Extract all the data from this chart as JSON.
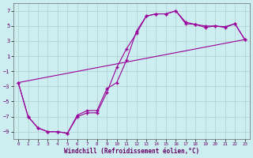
{
  "xlabel": "Windchill (Refroidissement éolien,°C)",
  "bg_color": "#cceef0",
  "grid_color": "#b0cdd0",
  "line_color": "#990099",
  "xlim": [
    -0.5,
    23.5
  ],
  "ylim": [
    -10,
    8
  ],
  "yticks": [
    7,
    5,
    3,
    1,
    -1,
    -3,
    -5,
    -7,
    -9
  ],
  "xticks": [
    0,
    1,
    2,
    3,
    4,
    5,
    6,
    7,
    8,
    9,
    10,
    11,
    12,
    13,
    14,
    15,
    16,
    17,
    18,
    19,
    20,
    21,
    22,
    23
  ],
  "line1_x": [
    0,
    1,
    2,
    3,
    4,
    5,
    6,
    7,
    8,
    9,
    10,
    11,
    12,
    13,
    14,
    15,
    16,
    17,
    18,
    19,
    20,
    21,
    22,
    23
  ],
  "line1_y": [
    -2.5,
    -7.0,
    -8.5,
    -9.0,
    -9.0,
    -9.2,
    -6.8,
    -6.2,
    -6.2,
    -3.3,
    -2.5,
    0.5,
    4.3,
    6.3,
    6.6,
    6.6,
    7.0,
    5.3,
    5.2,
    5.0,
    5.0,
    4.9,
    5.3,
    3.2
  ],
  "line2_x": [
    0,
    1,
    2,
    3,
    4,
    5,
    6,
    7,
    8,
    9,
    10,
    11,
    12,
    13,
    14,
    15,
    16,
    17,
    18,
    19,
    20,
    21,
    22,
    23
  ],
  "line2_y": [
    -2.5,
    -7.0,
    -8.5,
    -9.0,
    -9.0,
    -9.2,
    -7.0,
    -6.5,
    -6.5,
    -3.8,
    -0.5,
    2.0,
    4.0,
    6.3,
    6.6,
    6.6,
    7.0,
    5.5,
    5.2,
    4.8,
    5.0,
    4.8,
    5.3,
    3.2
  ],
  "line3_x": [
    0,
    23
  ],
  "line3_y": [
    -2.5,
    3.2
  ]
}
